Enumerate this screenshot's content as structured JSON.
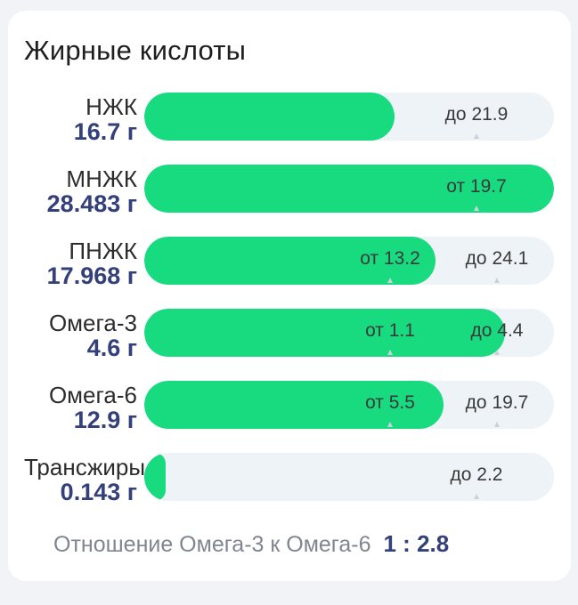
{
  "title": "Жирные кислоты",
  "rows": [
    {
      "label": "НЖК",
      "value": "16.7 г",
      "fill_fraction": 0.61,
      "marks": [
        {
          "text": "до 21.9",
          "pos": 0.81
        }
      ]
    },
    {
      "label": "МНЖК",
      "value": "28.483 г",
      "fill_fraction": 1.0,
      "marks": [
        {
          "text": "от 19.7",
          "pos": 0.81
        }
      ]
    },
    {
      "label": "ПНЖК",
      "value": "17.968 г",
      "fill_fraction": 0.71,
      "marks": [
        {
          "text": "от 13.2",
          "pos": 0.6
        },
        {
          "text": "до 24.1",
          "pos": 0.86
        }
      ]
    },
    {
      "label": "Омега-3",
      "value": "4.6 г",
      "fill_fraction": 0.88,
      "marks": [
        {
          "text": "от 1.1",
          "pos": 0.6
        },
        {
          "text": "до 4.4",
          "pos": 0.86
        }
      ]
    },
    {
      "label": "Омега-6",
      "value": "12.9 г",
      "fill_fraction": 0.73,
      "marks": [
        {
          "text": "от 5.5",
          "pos": 0.6
        },
        {
          "text": "до 19.7",
          "pos": 0.86
        }
      ]
    },
    {
      "label": "Трансжиры",
      "value": "0.143 г",
      "fill_fraction": 0.05,
      "marks": [
        {
          "text": "до 2.2",
          "pos": 0.81
        }
      ]
    }
  ],
  "ratio": {
    "label": "Отношение Омега-3 к Омега-6",
    "value": "1 : 2.8"
  },
  "colors": {
    "fill": "#18db80",
    "track": "#edf3f6",
    "value_text": "#33407a"
  }
}
